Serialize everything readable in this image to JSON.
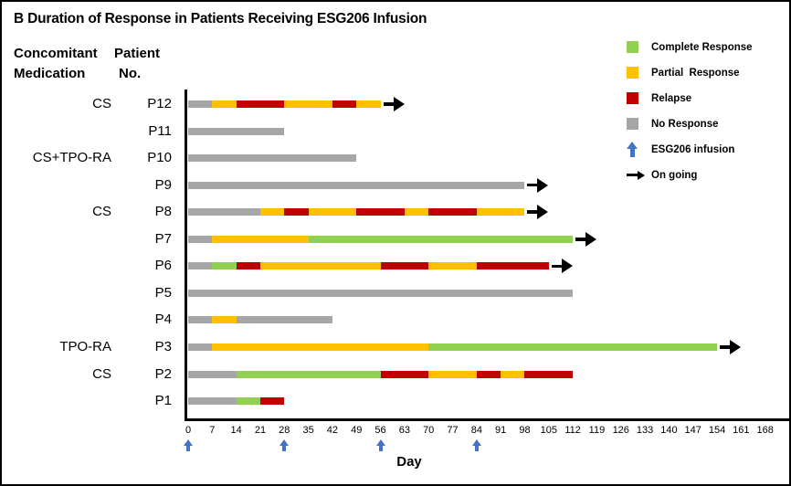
{
  "title": "B Duration of Response in Patients Receiving ESG206 Infusion",
  "headers": {
    "medication_line1": "Concomitant",
    "medication_line2": "Medication",
    "patient_line1": "Patient",
    "patient_line2": "No."
  },
  "legend": {
    "items": [
      {
        "label": "Complete Response",
        "marker": "square",
        "color": "#92D050"
      },
      {
        "label": "Partial  Response",
        "marker": "square",
        "color": "#FFC000"
      },
      {
        "label": "Relapse",
        "marker": "square",
        "color": "#C00000"
      },
      {
        "label": "No Response",
        "marker": "square",
        "color": "#A6A6A6"
      },
      {
        "label": "ESG206 infusion",
        "marker": "arrow-up",
        "color": "#4472C4"
      },
      {
        "label": "On going",
        "marker": "arrow-right",
        "color": "#000000"
      }
    ]
  },
  "chart_data": {
    "type": "bar",
    "subtype": "swimmer-plot",
    "title": "B Duration of Response in Patients Receiving ESG206 Infusion",
    "xlabel": "Day",
    "xlim": [
      0,
      168
    ],
    "x_ticks": [
      0,
      7,
      14,
      21,
      28,
      35,
      42,
      49,
      56,
      63,
      70,
      77,
      84,
      91,
      98,
      105,
      112,
      119,
      126,
      133,
      140,
      147,
      154,
      161,
      168
    ],
    "infusion_days": [
      0,
      28,
      56,
      84
    ],
    "infusion_color": "#4472C4",
    "status_colors": {
      "complete_response": "#92D050",
      "partial_response": "#FFC000",
      "relapse": "#C00000",
      "no_response": "#A6A6A6"
    },
    "patients": [
      {
        "id": "P12",
        "medication": "CS",
        "ongoing": true,
        "segments": [
          {
            "status": "no_response",
            "start": 0,
            "end": 7
          },
          {
            "status": "partial_response",
            "start": 7,
            "end": 14
          },
          {
            "status": "relapse",
            "start": 14,
            "end": 28
          },
          {
            "status": "partial_response",
            "start": 28,
            "end": 42
          },
          {
            "status": "relapse",
            "start": 42,
            "end": 49
          },
          {
            "status": "partial_response",
            "start": 49,
            "end": 56
          }
        ]
      },
      {
        "id": "P11",
        "medication": "",
        "ongoing": false,
        "segments": [
          {
            "status": "no_response",
            "start": 0,
            "end": 28
          }
        ]
      },
      {
        "id": "P10",
        "medication": "CS+TPO-RA",
        "ongoing": false,
        "segments": [
          {
            "status": "no_response",
            "start": 0,
            "end": 49
          }
        ]
      },
      {
        "id": "P9",
        "medication": "",
        "ongoing": true,
        "segments": [
          {
            "status": "no_response",
            "start": 0,
            "end": 98
          }
        ]
      },
      {
        "id": "P8",
        "medication": "CS",
        "ongoing": true,
        "segments": [
          {
            "status": "no_response",
            "start": 0,
            "end": 21
          },
          {
            "status": "partial_response",
            "start": 21,
            "end": 28
          },
          {
            "status": "relapse",
            "start": 28,
            "end": 35
          },
          {
            "status": "partial_response",
            "start": 35,
            "end": 49
          },
          {
            "status": "relapse",
            "start": 49,
            "end": 63
          },
          {
            "status": "partial_response",
            "start": 63,
            "end": 70
          },
          {
            "status": "relapse",
            "start": 70,
            "end": 84
          },
          {
            "status": "partial_response",
            "start": 84,
            "end": 98
          }
        ]
      },
      {
        "id": "P7",
        "medication": "",
        "ongoing": true,
        "segments": [
          {
            "status": "no_response",
            "start": 0,
            "end": 7
          },
          {
            "status": "partial_response",
            "start": 7,
            "end": 35
          },
          {
            "status": "complete_response",
            "start": 35,
            "end": 112
          }
        ]
      },
      {
        "id": "P6",
        "medication": "",
        "ongoing": true,
        "segments": [
          {
            "status": "no_response",
            "start": 0,
            "end": 7
          },
          {
            "status": "complete_response",
            "start": 7,
            "end": 14
          },
          {
            "status": "relapse",
            "start": 14,
            "end": 21
          },
          {
            "status": "partial_response",
            "start": 21,
            "end": 56
          },
          {
            "status": "relapse",
            "start": 56,
            "end": 70
          },
          {
            "status": "partial_response",
            "start": 70,
            "end": 84
          },
          {
            "status": "relapse",
            "start": 84,
            "end": 105
          }
        ]
      },
      {
        "id": "P5",
        "medication": "",
        "ongoing": false,
        "segments": [
          {
            "status": "no_response",
            "start": 0,
            "end": 112
          }
        ]
      },
      {
        "id": "P4",
        "medication": "",
        "ongoing": false,
        "segments": [
          {
            "status": "no_response",
            "start": 0,
            "end": 7
          },
          {
            "status": "partial_response",
            "start": 7,
            "end": 14
          },
          {
            "status": "no_response",
            "start": 14,
            "end": 42
          }
        ]
      },
      {
        "id": "P3",
        "medication": "TPO-RA",
        "ongoing": true,
        "segments": [
          {
            "status": "no_response",
            "start": 0,
            "end": 7
          },
          {
            "status": "partial_response",
            "start": 7,
            "end": 70
          },
          {
            "status": "complete_response",
            "start": 70,
            "end": 154
          }
        ]
      },
      {
        "id": "P2",
        "medication": "CS",
        "ongoing": false,
        "segments": [
          {
            "status": "no_response",
            "start": 0,
            "end": 14
          },
          {
            "status": "complete_response",
            "start": 14,
            "end": 56
          },
          {
            "status": "relapse",
            "start": 56,
            "end": 70
          },
          {
            "status": "partial_response",
            "start": 70,
            "end": 84
          },
          {
            "status": "relapse",
            "start": 84,
            "end": 91
          },
          {
            "status": "partial_response",
            "start": 91,
            "end": 98
          },
          {
            "status": "relapse",
            "start": 98,
            "end": 112
          }
        ]
      },
      {
        "id": "P1",
        "medication": "",
        "ongoing": false,
        "segments": [
          {
            "status": "no_response",
            "start": 0,
            "end": 14
          },
          {
            "status": "complete_response",
            "start": 14,
            "end": 21
          },
          {
            "status": "relapse",
            "start": 21,
            "end": 28
          }
        ]
      }
    ]
  }
}
